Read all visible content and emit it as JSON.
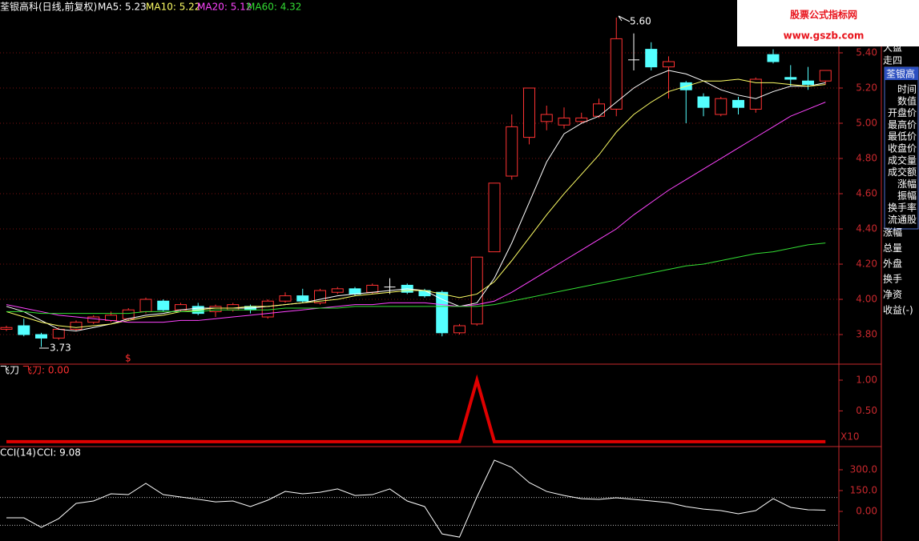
{
  "chart_data": [
    {
      "type": "candlestick",
      "title": "荃银高科(日线,前复权)",
      "open": [
        3.83,
        3.85,
        3.8,
        3.78,
        3.83,
        3.87,
        3.88,
        3.89,
        3.93,
        3.99,
        3.94,
        3.96,
        3.93,
        3.94,
        3.96,
        3.9,
        3.99,
        4.02,
        3.98,
        4.04,
        4.06,
        4.04,
        4.07,
        4.08,
        4.05,
        4.04,
        3.81,
        3.86,
        4.27,
        4.7,
        4.92,
        5.01,
        4.99,
        5.01,
        5.04,
        5.08,
        5.36,
        5.42,
        5.32,
        5.23,
        5.15,
        5.05,
        5.13,
        5.08,
        5.39,
        5.26,
        5.24,
        5.24
      ],
      "high": [
        3.85,
        3.89,
        3.81,
        3.84,
        3.88,
        3.91,
        3.93,
        3.95,
        4.01,
        4.0,
        3.98,
        3.98,
        3.97,
        3.98,
        3.97,
        4.0,
        4.04,
        4.06,
        4.06,
        4.07,
        4.07,
        4.09,
        4.12,
        4.09,
        4.06,
        4.05,
        3.86,
        4.24,
        4.66,
        5.05,
        5.2,
        5.1,
        5.09,
        5.06,
        5.14,
        5.6,
        5.51,
        5.46,
        5.38,
        5.24,
        5.17,
        5.15,
        5.15,
        5.26,
        5.42,
        5.33,
        5.32,
        5.3
      ],
      "low": [
        3.82,
        3.79,
        3.73,
        3.77,
        3.82,
        3.86,
        3.87,
        3.88,
        3.92,
        3.93,
        3.93,
        3.91,
        3.9,
        3.93,
        3.92,
        3.89,
        3.98,
        3.98,
        3.97,
        4.03,
        4.02,
        4.03,
        4.03,
        4.03,
        4.01,
        3.79,
        3.8,
        3.85,
        4.27,
        4.68,
        4.88,
        4.96,
        4.97,
        5.0,
        5.03,
        5.04,
        5.3,
        5.3,
        5.14,
        5.0,
        5.04,
        5.04,
        5.05,
        5.06,
        5.34,
        5.21,
        5.19,
        5.22
      ],
      "close": [
        3.84,
        3.8,
        3.78,
        3.83,
        3.87,
        3.9,
        3.91,
        3.94,
        4.0,
        3.94,
        3.97,
        3.92,
        3.96,
        3.97,
        3.94,
        3.99,
        4.02,
        3.99,
        4.05,
        4.06,
        4.03,
        4.08,
        4.07,
        4.04,
        4.02,
        3.81,
        3.85,
        4.24,
        4.66,
        4.98,
        5.2,
        5.05,
        5.03,
        5.03,
        5.11,
        5.48,
        5.36,
        5.32,
        5.35,
        5.19,
        5.09,
        5.14,
        5.09,
        5.25,
        5.35,
        5.25,
        5.22,
        5.3
      ],
      "up_color": "#ff3232",
      "down_color": "#54ffff",
      "flat_color": "#ffffff",
      "series": [
        {
          "name": "MA5: 5.23",
          "color": "#ffffff",
          "values": [
            3.96,
            3.93,
            3.88,
            3.83,
            3.82,
            3.84,
            3.86,
            3.89,
            3.91,
            3.92,
            3.94,
            3.95,
            3.95,
            3.95,
            3.95,
            3.96,
            3.97,
            3.98,
            4.0,
            4.02,
            4.03,
            4.04,
            4.05,
            4.06,
            4.05,
            4.0,
            3.96,
            3.98,
            4.12,
            4.32,
            4.55,
            4.78,
            4.94,
            5.0,
            5.04,
            5.12,
            5.2,
            5.26,
            5.3,
            5.28,
            5.24,
            5.19,
            5.16,
            5.14,
            5.18,
            5.21,
            5.21,
            5.23
          ]
        },
        {
          "name": "MA10: 5.22",
          "color": "#ffff66",
          "values": [
            3.93,
            3.9,
            3.87,
            3.85,
            3.84,
            3.85,
            3.86,
            3.88,
            3.9,
            3.91,
            3.93,
            3.94,
            3.95,
            3.95,
            3.96,
            3.96,
            3.97,
            3.98,
            3.99,
            4.0,
            4.02,
            4.03,
            4.04,
            4.05,
            4.05,
            4.03,
            4.01,
            4.03,
            4.1,
            4.22,
            4.35,
            4.48,
            4.6,
            4.71,
            4.82,
            4.95,
            5.05,
            5.12,
            5.18,
            5.21,
            5.24,
            5.24,
            5.25,
            5.23,
            5.23,
            5.22,
            5.21,
            5.22
          ]
        },
        {
          "name": "MA20: 5.12",
          "color": "#ff44ff",
          "values": [
            3.97,
            3.95,
            3.93,
            3.91,
            3.9,
            3.89,
            3.88,
            3.87,
            3.87,
            3.87,
            3.88,
            3.88,
            3.89,
            3.9,
            3.91,
            3.92,
            3.93,
            3.94,
            3.95,
            3.96,
            3.97,
            3.97,
            3.98,
            3.98,
            3.98,
            3.97,
            3.96,
            3.97,
            3.99,
            4.04,
            4.1,
            4.16,
            4.22,
            4.28,
            4.34,
            4.4,
            4.48,
            4.55,
            4.62,
            4.68,
            4.74,
            4.8,
            4.86,
            4.92,
            4.98,
            5.04,
            5.08,
            5.12
          ]
        },
        {
          "name": "MA60: 4.32",
          "color": "#33dd33",
          "values": [
            3.93,
            3.93,
            3.92,
            3.92,
            3.92,
            3.92,
            3.92,
            3.92,
            3.93,
            3.93,
            3.93,
            3.93,
            3.94,
            3.94,
            3.94,
            3.94,
            3.95,
            3.95,
            3.95,
            3.95,
            3.96,
            3.96,
            3.96,
            3.96,
            3.96,
            3.96,
            3.96,
            3.96,
            3.97,
            3.99,
            4.01,
            4.03,
            4.05,
            4.07,
            4.09,
            4.11,
            4.13,
            4.15,
            4.17,
            4.19,
            4.2,
            4.22,
            4.24,
            4.26,
            4.27,
            4.29,
            4.31,
            4.32
          ]
        }
      ],
      "ylim": [
        3.632,
        5.7
      ],
      "yticks": [
        {
          "value": 3.8,
          "label": "3.80"
        },
        {
          "value": 4.0,
          "label": "4.00"
        },
        {
          "value": 4.2,
          "label": "4.20"
        },
        {
          "value": 4.4,
          "label": "4.40"
        },
        {
          "value": 4.6,
          "label": "4.60"
        },
        {
          "value": 4.8,
          "label": "4.80"
        },
        {
          "value": 5.0,
          "label": "5.00"
        },
        {
          "value": 5.2,
          "label": "5.20"
        },
        {
          "value": 5.4,
          "label": "5.40"
        }
      ],
      "grid": true,
      "annotations": [
        "5.60",
        "3.73",
        "$"
      ]
    },
    {
      "type": "line",
      "title": "飞刀",
      "label": "飞刀: 0.00",
      "scale_label": "X10",
      "series": [
        {
          "color": "#e00000",
          "values": [
            0,
            0,
            0,
            0,
            0,
            0,
            0,
            0,
            0,
            0,
            0,
            0,
            0,
            0,
            0,
            0,
            0,
            0,
            0,
            0,
            0,
            0,
            0,
            0,
            0,
            0,
            0,
            1,
            0,
            0,
            0,
            0,
            0,
            0,
            0,
            0,
            0,
            0,
            0,
            0,
            0,
            0,
            0,
            0,
            0,
            0,
            0,
            0
          ]
        }
      ],
      "ylim": [
        -0.08,
        1.26
      ],
      "yticks": [
        {
          "value": 0.5,
          "label": "0.50"
        },
        {
          "value": 1,
          "label": "1.00"
        }
      ]
    },
    {
      "type": "line",
      "title": "CCI(14)",
      "label": "CCI: 9.08",
      "series": [
        {
          "color": "#ffffff",
          "values": [
            -46,
            -46,
            -115,
            -52,
            58,
            75,
            127,
            121,
            202,
            121,
            104,
            87,
            69,
            75,
            35,
            81,
            144,
            127,
            138,
            162,
            115,
            121,
            162,
            75,
            35,
            -162,
            -185,
            104,
            369,
            317,
            208,
            144,
            115,
            92,
            87,
            98,
            87,
            75,
            63,
            35,
            17,
            6,
            -17,
            6,
            92,
            29,
            12,
            9.08
          ]
        }
      ],
      "ylim": [
        -213,
        467
      ],
      "yticks": [
        {
          "value": 0,
          "label": "0.00"
        },
        {
          "value": 150,
          "label": "150.0"
        },
        {
          "value": 300,
          "label": "300.0"
        }
      ],
      "reference_lines": [
        100,
        -100
      ]
    }
  ],
  "sidebar": {
    "top": [
      "大盘",
      "走四"
    ],
    "box_title": "荃银高",
    "box_rows": [
      "时间",
      "数值",
      "开盘价",
      "最高价",
      "最低价",
      "收盘价",
      "成交量",
      "成交额",
      "涨幅",
      "振幅",
      "换手率",
      "流通股"
    ],
    "bottom": [
      "涨幅",
      "总量",
      "外盘",
      "换手",
      "净资",
      "收益(-)"
    ]
  },
  "watermark": {
    "title": "股票公式指标网",
    "url": "www.gszb.com"
  }
}
